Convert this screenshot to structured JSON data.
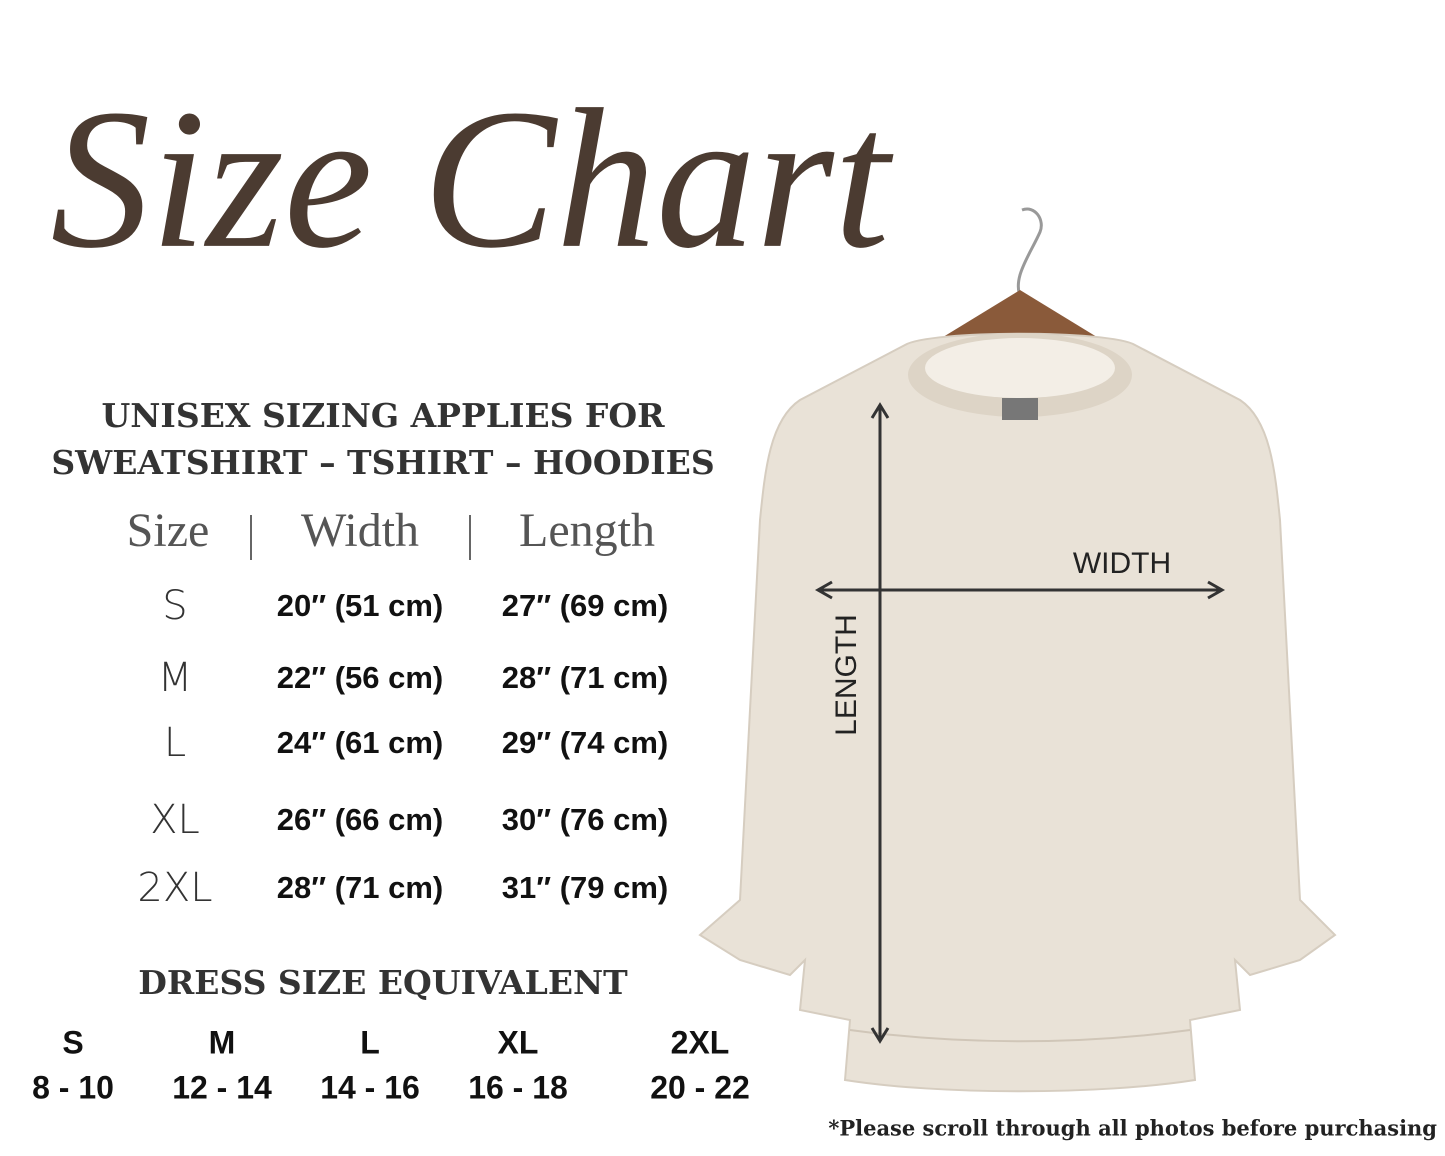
{
  "title": "Size Chart",
  "heading": [
    "UNISEX SIZING APPLIES FOR",
    "SWEATSHIRT – TSHIRT – HOODIES"
  ],
  "table": {
    "header": [
      "Size",
      "Width",
      "Length"
    ],
    "rows": [
      [
        "S",
        "20″ (51 cm)",
        "27″ (69 cm)"
      ],
      [
        "M",
        "22″ (56 cm)",
        "28″ (71 cm)"
      ],
      [
        "L",
        "24″ (61 cm)",
        "29″ (74 cm)"
      ],
      [
        "XL",
        "26″ (66 cm)",
        "30″ (76 cm)"
      ],
      [
        "2XL",
        "28″ (71 cm)",
        "31″ (79 cm)"
      ]
    ]
  },
  "dress": {
    "title": "DRESS SIZE EQUIVALENT",
    "sizes": [
      "S",
      "M",
      "L",
      "XL",
      "2XL"
    ],
    "ranges": [
      "8 - 10",
      "12 - 14",
      "14 - 16",
      "16 - 18",
      "20 - 22"
    ]
  },
  "diagram": {
    "width_label": "WIDTH",
    "length_label": "LENGTH"
  },
  "note": "*Please scroll through all photos before purchasing"
}
